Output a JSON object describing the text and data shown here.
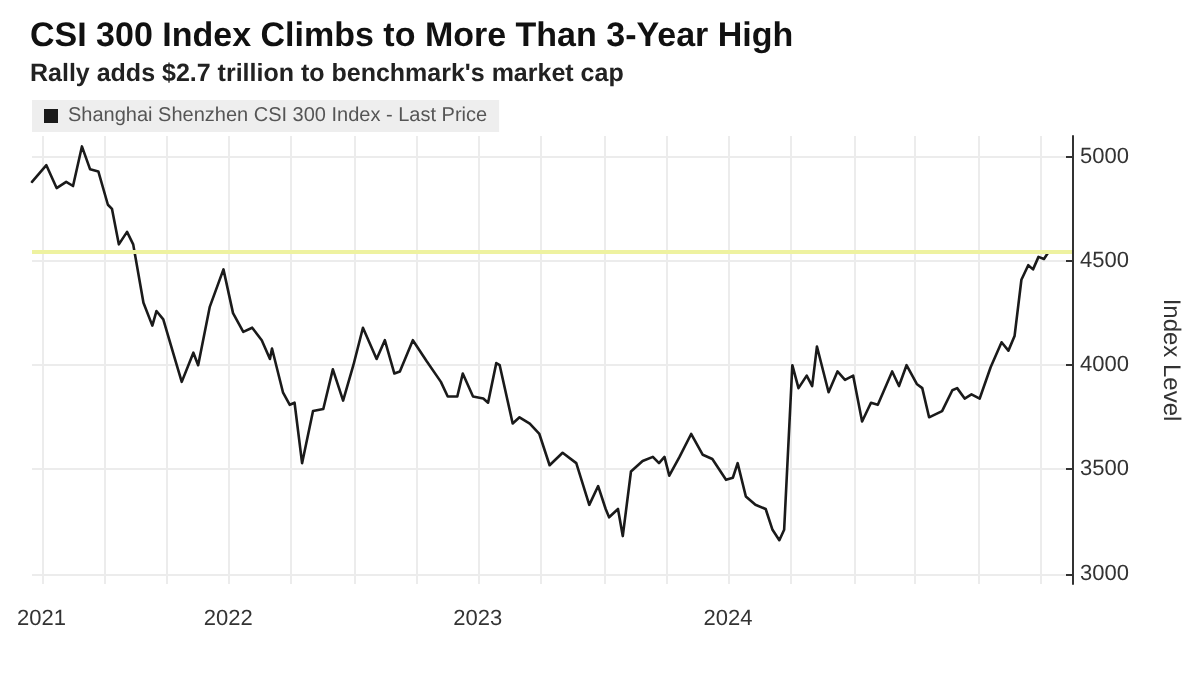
{
  "chart_data": {
    "type": "line",
    "title": "CSI 300 Index Climbs to More Than 3-Year High",
    "subtitle": "Rally adds $2.7 trillion to benchmark's market cap",
    "ylabel": "Index Level",
    "x": [
      "2021-09-17",
      "2021-10-08",
      "2021-10-23",
      "2021-11-06",
      "2021-11-16",
      "2021-11-29",
      "2021-12-11",
      "2021-12-23",
      "2022-01-06",
      "2022-01-12",
      "2022-01-22",
      "2022-02-03",
      "2022-02-12",
      "2022-02-27",
      "2022-03-12",
      "2022-03-18",
      "2022-03-28",
      "2022-04-14",
      "2022-04-24",
      "2022-05-11",
      "2022-05-18",
      "2022-06-04",
      "2022-06-24",
      "2022-07-08",
      "2022-07-23",
      "2022-08-05",
      "2022-08-19",
      "2022-08-31",
      "2022-09-03",
      "2022-09-19",
      "2022-09-29",
      "2022-10-06",
      "2022-10-17",
      "2022-11-02",
      "2022-11-17",
      "2022-12-01",
      "2022-12-16",
      "2022-12-31",
      "2023-01-14",
      "2023-02-03",
      "2023-02-15",
      "2023-03-01",
      "2023-03-09",
      "2023-03-28",
      "2023-04-17",
      "2023-05-08",
      "2023-05-18",
      "2023-06-01",
      "2023-06-09",
      "2023-06-24",
      "2023-07-09",
      "2023-07-16",
      "2023-07-28",
      "2023-08-02",
      "2023-08-21",
      "2023-08-31",
      "2023-09-15",
      "2023-09-29",
      "2023-10-14",
      "2023-11-02",
      "2023-11-22",
      "2023-12-11",
      "2023-12-24",
      "2024-01-04",
      "2024-01-09",
      "2024-01-22",
      "2024-01-29",
      "2024-02-10",
      "2024-02-27",
      "2024-03-13",
      "2024-03-22",
      "2024-03-30",
      "2024-04-06",
      "2024-04-21",
      "2024-05-08",
      "2024-05-25",
      "2024-06-08",
      "2024-06-28",
      "2024-07-08",
      "2024-07-15",
      "2024-07-27",
      "2024-08-10",
      "2024-08-25",
      "2024-09-04",
      "2024-09-14",
      "2024-09-21",
      "2024-10-03",
      "2024-10-12",
      "2024-10-24",
      "2024-11-01",
      "2024-11-08",
      "2024-11-25",
      "2024-12-08",
      "2024-12-19",
      "2024-12-31",
      "2025-01-13",
      "2025-01-26",
      "2025-02-05",
      "2025-02-26",
      "2025-03-08",
      "2025-03-19",
      "2025-04-03",
      "2025-04-11",
      "2025-04-21",
      "2025-05-10",
      "2025-05-25",
      "2025-06-01",
      "2025-06-12",
      "2025-06-22",
      "2025-07-04",
      "2025-07-20",
      "2025-08-05",
      "2025-08-15",
      "2025-08-24",
      "2025-09-03",
      "2025-09-13",
      "2025-09-20",
      "2025-09-28",
      "2025-10-06",
      "2025-10-12"
    ],
    "series": [
      {
        "name": "Shanghai Shenzhen CSI 300 Index - Last Price",
        "color": "#1a1a1a",
        "values": [
          4880,
          4960,
          4850,
          4880,
          4860,
          5050,
          4940,
          4930,
          4770,
          4750,
          4580,
          4640,
          4580,
          4300,
          4190,
          4260,
          4220,
          4030,
          3920,
          4060,
          4000,
          4280,
          4460,
          4250,
          4160,
          4180,
          4120,
          4030,
          4080,
          3870,
          3810,
          3820,
          3530,
          3780,
          3790,
          3980,
          3830,
          4000,
          4180,
          4030,
          4120,
          3960,
          3970,
          4120,
          4020,
          3920,
          3850,
          3850,
          3960,
          3850,
          3840,
          3820,
          4010,
          4000,
          3720,
          3750,
          3720,
          3670,
          3520,
          3580,
          3530,
          3330,
          3420,
          3310,
          3270,
          3310,
          3180,
          3490,
          3540,
          3560,
          3530,
          3560,
          3470,
          3560,
          3670,
          3570,
          3550,
          3450,
          3460,
          3530,
          3370,
          3330,
          3310,
          3210,
          3160,
          3210,
          4000,
          3890,
          3950,
          3900,
          4090,
          3870,
          3970,
          3930,
          3950,
          3730,
          3820,
          3810,
          3970,
          3900,
          4000,
          3910,
          3890,
          3750,
          3780,
          3880,
          3890,
          3840,
          3860,
          3840,
          3990,
          4110,
          4070,
          4140,
          4410,
          4480,
          4460,
          4520,
          4510,
          4540
        ]
      }
    ],
    "xlim": [
      "2021-09-17",
      "2025-11-16"
    ],
    "xticks": [
      {
        "value": "2021-10-01",
        "label": "2021"
      },
      {
        "value": "2022-01-01",
        "label": null
      },
      {
        "value": "2022-04-01",
        "label": null
      },
      {
        "value": "2022-07-01",
        "label": "2022"
      },
      {
        "value": "2022-10-01",
        "label": null
      },
      {
        "value": "2023-01-01",
        "label": null
      },
      {
        "value": "2023-04-01",
        "label": null
      },
      {
        "value": "2023-07-01",
        "label": "2023"
      },
      {
        "value": "2023-10-01",
        "label": null
      },
      {
        "value": "2024-01-01",
        "label": null
      },
      {
        "value": "2024-04-01",
        "label": null
      },
      {
        "value": "2024-07-01",
        "label": "2024"
      },
      {
        "value": "2024-10-01",
        "label": null
      },
      {
        "value": "2025-01-01",
        "label": null
      },
      {
        "value": "2025-04-01",
        "label": null
      },
      {
        "value": "2025-07-01",
        "label": null
      },
      {
        "value": "2025-10-01",
        "label": null
      }
    ],
    "ylim": [
      2950,
      5100
    ],
    "yticks": [
      3000,
      3500,
      4000,
      4500,
      5000
    ],
    "ref_lines": [
      {
        "axis": "y",
        "value": 4550,
        "color": "#eef2a0"
      }
    ],
    "grid": true,
    "legend": "top left",
    "marker": "none",
    "line_style": "solid"
  }
}
